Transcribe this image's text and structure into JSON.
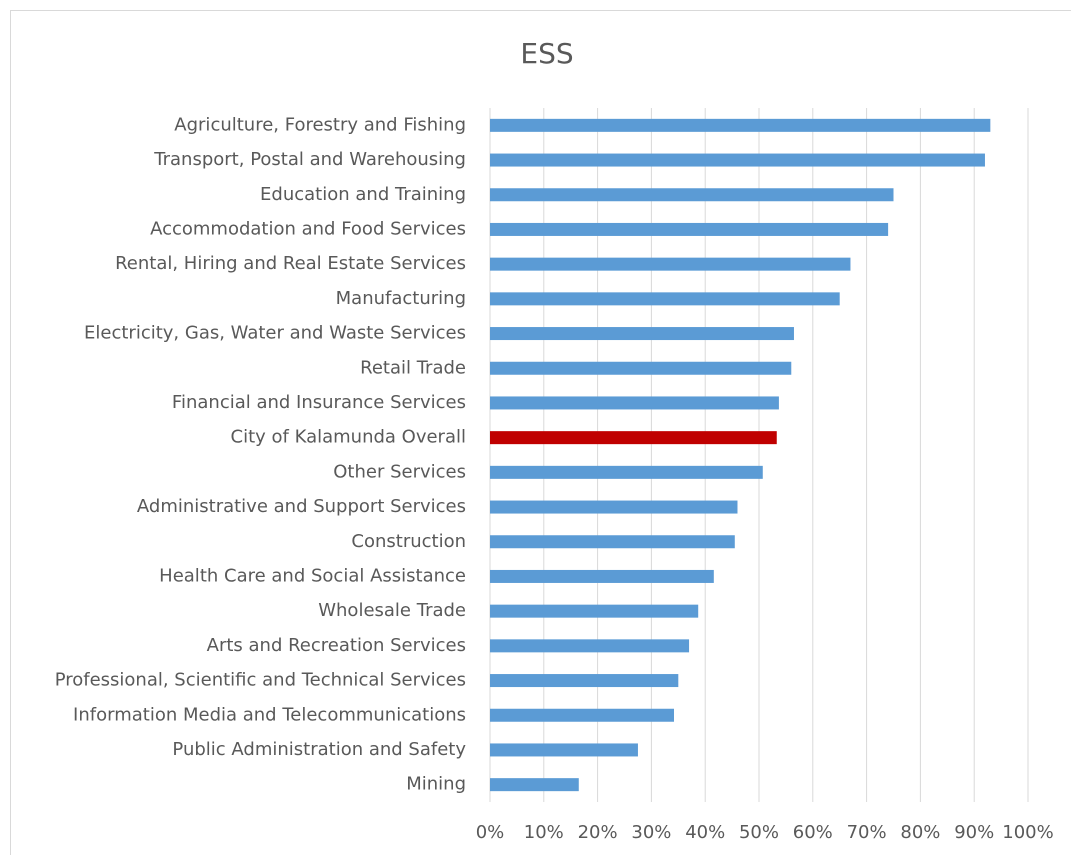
{
  "chart_data": {
    "type": "bar",
    "orientation": "horizontal",
    "title": "ESS",
    "categories": [
      "Agriculture, Forestry and Fishing",
      "Transport, Postal and Warehousing",
      "Education and Training",
      "Accommodation and Food Services",
      "Rental, Hiring and Real Estate Services",
      "Manufacturing",
      "Electricity, Gas, Water and Waste Services",
      "Retail Trade",
      "Financial and Insurance Services",
      "City of Kalamunda Overall",
      "Other Services",
      "Administrative and Support Services",
      "Construction",
      "Health Care and Social Assistance",
      "Wholesale Trade",
      "Arts and Recreation Services",
      "Professional, Scientific and Technical Services",
      "Information Media and Telecommunications",
      "Public Administration and Safety",
      "Mining"
    ],
    "values": [
      93,
      92,
      75,
      74,
      67,
      65,
      56.5,
      56,
      53.7,
      53.3,
      50.7,
      46,
      45.5,
      41.6,
      38.7,
      37,
      35,
      34.2,
      27.5,
      16.5
    ],
    "colors": [
      "#5b9bd5",
      "#5b9bd5",
      "#5b9bd5",
      "#5b9bd5",
      "#5b9bd5",
      "#5b9bd5",
      "#5b9bd5",
      "#5b9bd5",
      "#5b9bd5",
      "#c00000",
      "#5b9bd5",
      "#5b9bd5",
      "#5b9bd5",
      "#5b9bd5",
      "#5b9bd5",
      "#5b9bd5",
      "#5b9bd5",
      "#5b9bd5",
      "#5b9bd5",
      "#5b9bd5"
    ],
    "xlim": [
      0,
      100
    ],
    "xticks": [
      {
        "value": 0,
        "label": "0%"
      },
      {
        "value": 10,
        "label": "10%"
      },
      {
        "value": 20,
        "label": "20%"
      },
      {
        "value": 30,
        "label": "30%"
      },
      {
        "value": 40,
        "label": "40%"
      },
      {
        "value": 50,
        "label": "50%"
      },
      {
        "value": 60,
        "label": "60%"
      },
      {
        "value": 70,
        "label": "70%"
      },
      {
        "value": 80,
        "label": "80%"
      },
      {
        "value": 90,
        "label": "90%"
      },
      {
        "value": 100,
        "label": "100%"
      }
    ],
    "grid": true
  }
}
